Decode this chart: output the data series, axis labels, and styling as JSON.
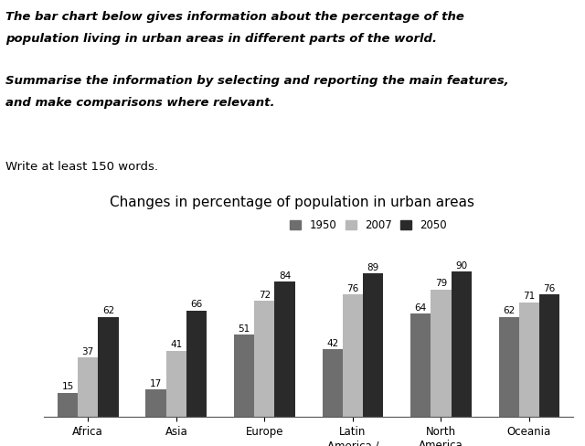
{
  "title": "Changes in percentage of population in urban areas",
  "categories": [
    "Africa",
    "Asia",
    "Europe",
    "Latin\nAmerica /\nCaribbean",
    "North\nAmerica",
    "Oceania"
  ],
  "years": [
    "1950",
    "2007",
    "2050"
  ],
  "values": {
    "1950": [
      15,
      17,
      51,
      42,
      64,
      62
    ],
    "2007": [
      37,
      41,
      72,
      76,
      79,
      71
    ],
    "2050": [
      62,
      66,
      84,
      89,
      90,
      76
    ]
  },
  "bar_colors": [
    "#6e6e6e",
    "#b8b8b8",
    "#2a2a2a"
  ],
  "legend_labels": [
    "1950",
    "2007",
    "2050"
  ],
  "header_lines": [
    [
      "The bar chart below gives information about the percentage of the",
      true,
      true
    ],
    [
      "population living in urban areas in different parts of the world.",
      true,
      true
    ],
    [
      "",
      false,
      false
    ],
    [
      "Summarise the information by selecting and reporting the main features,",
      true,
      true
    ],
    [
      "and make comparisons where relevant.",
      true,
      true
    ],
    [
      "",
      false,
      false
    ],
    [
      "",
      false,
      false
    ],
    [
      "Write at least 150 words.",
      false,
      false
    ]
  ],
  "bar_width": 0.23,
  "ylim": [
    0,
    105
  ],
  "value_fontsize": 7.5,
  "axis_fontsize": 8.5,
  "title_fontsize": 11,
  "legend_fontsize": 8.5,
  "bg_color": "#ffffff"
}
